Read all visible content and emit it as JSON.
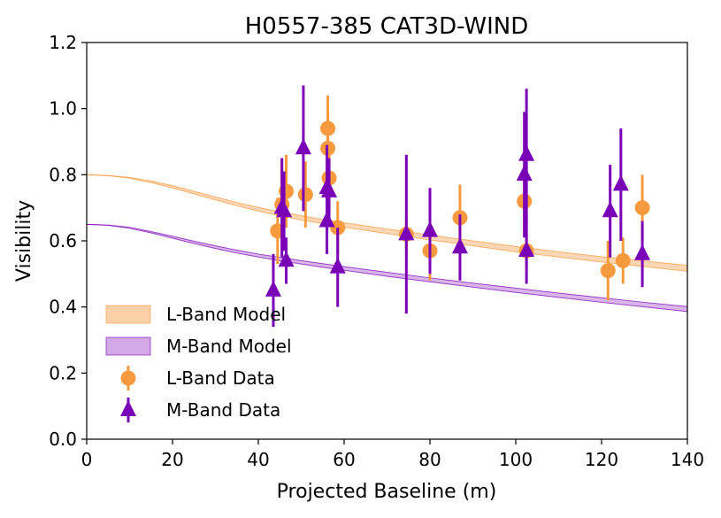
{
  "chart_data": {
    "type": "scatter",
    "title": "H0557-385 CAT3D-WIND",
    "xlabel": "Projected Baseline (m)",
    "ylabel": "Visibility",
    "xlim": [
      0,
      140
    ],
    "ylim": [
      0,
      1.2
    ],
    "x_ticks": [
      "0",
      "20",
      "40",
      "60",
      "80",
      "100",
      "120",
      "140"
    ],
    "y_ticks": [
      "0.0",
      "0.2",
      "0.4",
      "0.6",
      "0.8",
      "1.0",
      "1.2"
    ],
    "grid": false,
    "legend_position": "lower-left",
    "colors": {
      "l_band": "#f79a3e",
      "l_band_fill": "#fcd0a8",
      "m_band": "#7a00b8",
      "m_band_fill": "#d2a8e6"
    },
    "legend": [
      {
        "label": "L-Band Model",
        "kind": "band",
        "series": "l_model"
      },
      {
        "label": "M-Band Model",
        "kind": "band",
        "series": "m_model"
      },
      {
        "label": "L-Band Data",
        "kind": "circle",
        "series": "l_data"
      },
      {
        "label": "M-Band Data",
        "kind": "triangle",
        "series": "m_data"
      }
    ],
    "models": {
      "l_model": {
        "name": "L-Band Model",
        "x": [
          0,
          5,
          10,
          15,
          20,
          25,
          30,
          35,
          40,
          45,
          50,
          55,
          60,
          70,
          80,
          90,
          100,
          110,
          120,
          130,
          140
        ],
        "lower": [
          0.8,
          0.797,
          0.789,
          0.776,
          0.76,
          0.742,
          0.724,
          0.706,
          0.69,
          0.676,
          0.663,
          0.652,
          0.641,
          0.622,
          0.603,
          0.585,
          0.567,
          0.551,
          0.536,
          0.522,
          0.508
        ],
        "upper": [
          0.8,
          0.798,
          0.792,
          0.781,
          0.767,
          0.75,
          0.733,
          0.716,
          0.701,
          0.688,
          0.676,
          0.665,
          0.655,
          0.636,
          0.618,
          0.6,
          0.583,
          0.567,
          0.552,
          0.539,
          0.526
        ]
      },
      "m_model": {
        "name": "M-Band Model",
        "x": [
          0,
          5,
          10,
          15,
          20,
          25,
          30,
          35,
          40,
          45,
          50,
          55,
          60,
          70,
          80,
          90,
          100,
          110,
          120,
          130,
          140
        ],
        "lower": [
          0.65,
          0.647,
          0.638,
          0.624,
          0.608,
          0.592,
          0.577,
          0.563,
          0.551,
          0.54,
          0.53,
          0.52,
          0.511,
          0.493,
          0.476,
          0.46,
          0.444,
          0.429,
          0.414,
          0.4,
          0.386
        ],
        "upper": [
          0.65,
          0.648,
          0.641,
          0.628,
          0.614,
          0.599,
          0.585,
          0.572,
          0.56,
          0.55,
          0.54,
          0.531,
          0.522,
          0.505,
          0.488,
          0.472,
          0.457,
          0.442,
          0.428,
          0.414,
          0.401
        ]
      }
    },
    "series": [
      {
        "key": "l_data",
        "name": "L-Band Data",
        "marker": "circle",
        "points": [
          {
            "x": 44.5,
            "y": 0.63,
            "err": 0.1
          },
          {
            "x": 45.5,
            "y": 0.71,
            "err": 0.14
          },
          {
            "x": 46.5,
            "y": 0.75,
            "err": 0.11
          },
          {
            "x": 51.0,
            "y": 0.74,
            "err": 0.1
          },
          {
            "x": 56.2,
            "y": 0.94,
            "err": 0.1
          },
          {
            "x": 56.2,
            "y": 0.88,
            "err": 0.1
          },
          {
            "x": 56.5,
            "y": 0.79,
            "err": 0.1
          },
          {
            "x": 58.5,
            "y": 0.64,
            "err": 0.08
          },
          {
            "x": 74.5,
            "y": 0.62,
            "err": 0.06
          },
          {
            "x": 80.0,
            "y": 0.57,
            "err": 0.09
          },
          {
            "x": 87.0,
            "y": 0.67,
            "err": 0.1
          },
          {
            "x": 102.0,
            "y": 0.72,
            "err": 0.1
          },
          {
            "x": 102.5,
            "y": 0.57,
            "err": 0.05
          },
          {
            "x": 121.5,
            "y": 0.51,
            "err": 0.09
          },
          {
            "x": 125.0,
            "y": 0.54,
            "err": 0.07
          },
          {
            "x": 129.5,
            "y": 0.7,
            "err": 0.1
          }
        ]
      },
      {
        "key": "m_data",
        "name": "M-Band Data",
        "marker": "triangle",
        "points": [
          {
            "x": 43.5,
            "y": 0.45,
            "err": 0.11
          },
          {
            "x": 45.5,
            "y": 0.7,
            "err": 0.15
          },
          {
            "x": 46.0,
            "y": 0.69,
            "err": 0.12
          },
          {
            "x": 46.5,
            "y": 0.54,
            "err": 0.07
          },
          {
            "x": 50.5,
            "y": 0.88,
            "err": 0.19
          },
          {
            "x": 56.0,
            "y": 0.76,
            "err": 0.13
          },
          {
            "x": 56.5,
            "y": 0.75,
            "err": 0.1
          },
          {
            "x": 56.0,
            "y": 0.66,
            "err": 0.1
          },
          {
            "x": 58.5,
            "y": 0.52,
            "err": 0.12
          },
          {
            "x": 74.5,
            "y": 0.62,
            "err": 0.24
          },
          {
            "x": 80.0,
            "y": 0.63,
            "err": 0.13
          },
          {
            "x": 87.0,
            "y": 0.58,
            "err": 0.1
          },
          {
            "x": 102.5,
            "y": 0.86,
            "err": 0.2
          },
          {
            "x": 102.0,
            "y": 0.8,
            "err": 0.19
          },
          {
            "x": 102.5,
            "y": 0.57,
            "err": 0.1
          },
          {
            "x": 122.0,
            "y": 0.69,
            "err": 0.14
          },
          {
            "x": 124.5,
            "y": 0.77,
            "err": 0.17
          },
          {
            "x": 129.5,
            "y": 0.56,
            "err": 0.1
          }
        ]
      }
    ]
  }
}
